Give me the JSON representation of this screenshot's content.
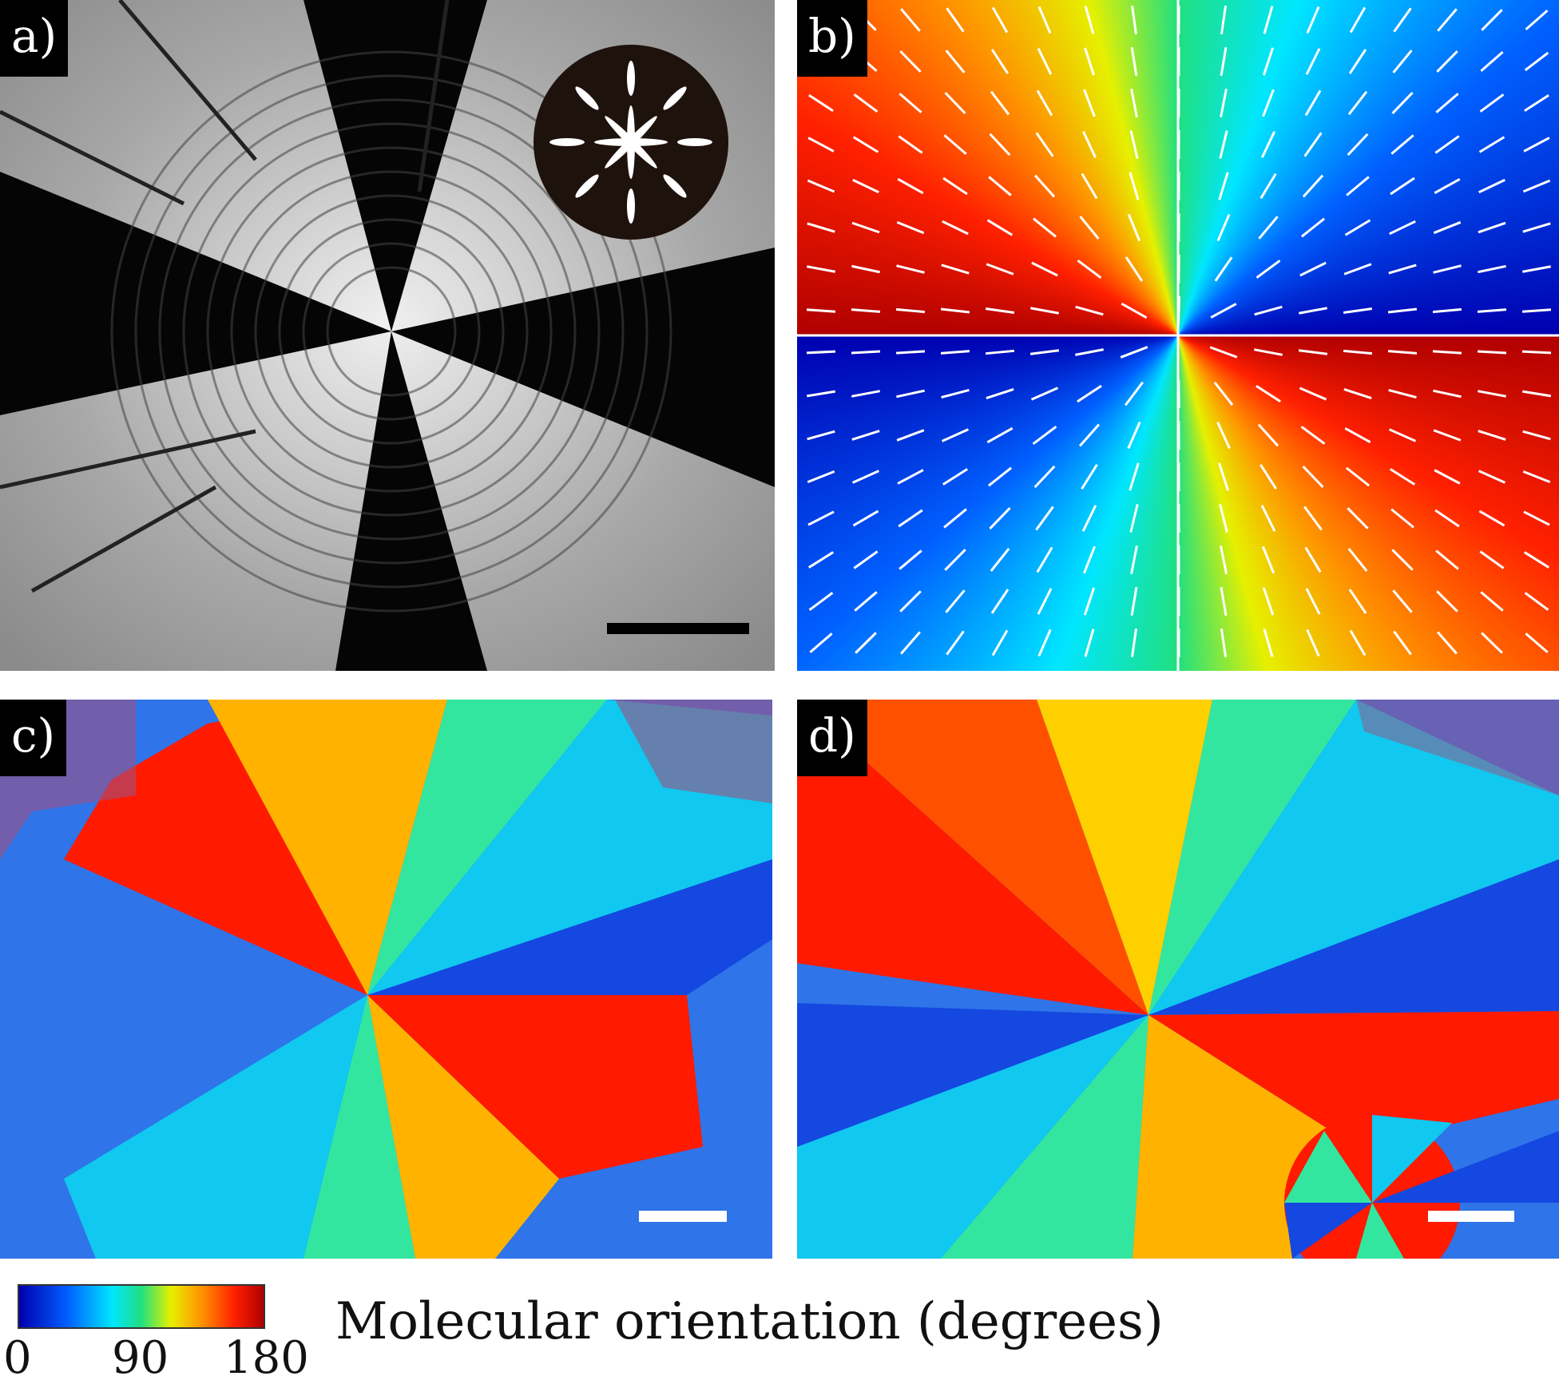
{
  "panels": {
    "a": {
      "label": "a)"
    },
    "b": {
      "label": "b)"
    },
    "c": {
      "label": "c)"
    },
    "d": {
      "label": "d)"
    }
  },
  "colorbar": {
    "ticks": [
      "0",
      "90",
      "180"
    ],
    "title": "Molecular orientation (degrees)",
    "min": 0,
    "max": 180,
    "colors": [
      "#0000b0",
      "#0060ff",
      "#00e6ff",
      "#20e080",
      "#e6f000",
      "#ff9000",
      "#ff2000",
      "#b00000"
    ]
  }
}
